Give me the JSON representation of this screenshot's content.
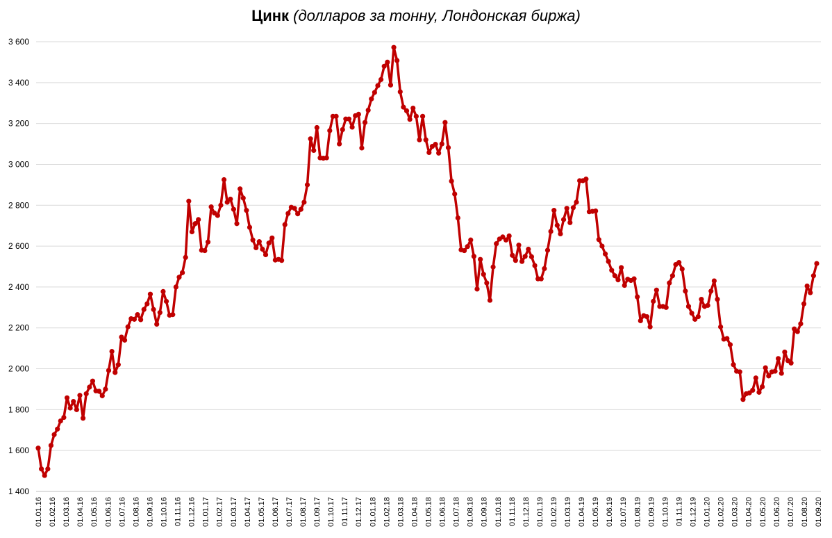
{
  "title": {
    "bold": "Цинк",
    "italic": "(долларов за тонну, Лондонская биржа)"
  },
  "colors": {
    "series": "#C00000",
    "grid": "#d9d9d9"
  },
  "chart_data": {
    "type": "line",
    "title": "Цинк (долларов за тонну, Лондонская биржа)",
    "xlabel": "",
    "ylabel": "",
    "ylim": [
      1400,
      3600
    ],
    "yticks": [
      "1 400",
      "1 600",
      "1 800",
      "2 000",
      "2 200",
      "2 400",
      "2 600",
      "2 800",
      "3 000",
      "3 200",
      "3 400",
      "3 600"
    ],
    "grid": true,
    "x_tick_labels": [
      "01.01.16",
      "01.02.16",
      "01.03.16",
      "01.04.16",
      "01.05.16",
      "01.06.16",
      "01.07.16",
      "01.08.16",
      "01.09.16",
      "01.10.16",
      "01.11.16",
      "01.12.16",
      "01.01.17",
      "01.02.17",
      "01.03.17",
      "01.04.17",
      "01.05.17",
      "01.06.17",
      "01.07.17",
      "01.08.17",
      "01.09.17",
      "01.10.17",
      "01.11.17",
      "01.12.17",
      "01.01.18",
      "01.02.18",
      "01.03.18",
      "01.04.18",
      "01.05.18",
      "01.06.18",
      "01.07.18",
      "01.08.18",
      "01.09.18",
      "01.10.18",
      "01.11.18",
      "01.12.18",
      "01.01.19",
      "01.02.19",
      "01.03.19",
      "01.04.19",
      "01.05.19",
      "01.06.19",
      "01.07.19",
      "01.08.19",
      "01.09.19",
      "01.10.19",
      "01.11.19",
      "01.12.19",
      "01.01.20",
      "01.02.20",
      "01.03.20",
      "01.04.20",
      "01.05.20",
      "01.06.20",
      "01.07.20",
      "01.08.20",
      "01.09.20"
    ],
    "series": [
      {
        "values": [
          1612,
          1510,
          1478,
          1510,
          1625,
          1678,
          1705,
          1745,
          1762,
          1858,
          1808,
          1840,
          1800,
          1870,
          1758,
          1878,
          1910,
          1940,
          1892,
          1890,
          1868,
          1900,
          1992,
          2085,
          1982,
          2020,
          2155,
          2140,
          2205,
          2245,
          2242,
          2265,
          2240,
          2290,
          2318,
          2365,
          2290,
          2218,
          2275,
          2378,
          2330,
          2262,
          2265,
          2400,
          2448,
          2470,
          2545,
          2820,
          2670,
          2710,
          2730,
          2580,
          2578,
          2620,
          2792,
          2762,
          2750,
          2800,
          2925,
          2815,
          2830,
          2780,
          2710,
          2880,
          2835,
          2775,
          2692,
          2630,
          2592,
          2622,
          2585,
          2558,
          2615,
          2640,
          2532,
          2535,
          2530,
          2705,
          2760,
          2790,
          2785,
          2758,
          2780,
          2815,
          2900,
          3125,
          3068,
          3180,
          3032,
          3030,
          3032,
          3165,
          3235,
          3235,
          3100,
          3170,
          3222,
          3222,
          3182,
          3238,
          3245,
          3080,
          3205,
          3265,
          3320,
          3352,
          3385,
          3415,
          3480,
          3500,
          3388,
          3572,
          3508,
          3355,
          3280,
          3262,
          3220,
          3275,
          3235,
          3120,
          3235,
          3120,
          3058,
          3088,
          3098,
          3055,
          3100,
          3205,
          3082,
          2918,
          2855,
          2738,
          2582,
          2578,
          2598,
          2630,
          2550,
          2390,
          2535,
          2462,
          2420,
          2335,
          2498,
          2612,
          2635,
          2645,
          2630,
          2650,
          2555,
          2530,
          2605,
          2525,
          2550,
          2585,
          2548,
          2505,
          2440,
          2440,
          2490,
          2580,
          2672,
          2775,
          2702,
          2660,
          2730,
          2785,
          2715,
          2788,
          2815,
          2920,
          2920,
          2928,
          2768,
          2770,
          2772,
          2632,
          2600,
          2562,
          2525,
          2482,
          2455,
          2435,
          2495,
          2408,
          2438,
          2432,
          2440,
          2352,
          2235,
          2260,
          2255,
          2205,
          2330,
          2385,
          2305,
          2305,
          2300,
          2420,
          2455,
          2510,
          2520,
          2488,
          2380,
          2305,
          2272,
          2242,
          2255,
          2340,
          2305,
          2310,
          2380,
          2430,
          2340,
          2205,
          2145,
          2148,
          2118,
          2020,
          1988,
          1985,
          1850,
          1878,
          1882,
          1895,
          1955,
          1885,
          1912,
          2005,
          1965,
          1985,
          1988,
          2050,
          1978,
          2082,
          2040,
          2028,
          2195,
          2182,
          2220,
          2318,
          2405,
          2372,
          2455,
          2515
        ]
      }
    ]
  }
}
